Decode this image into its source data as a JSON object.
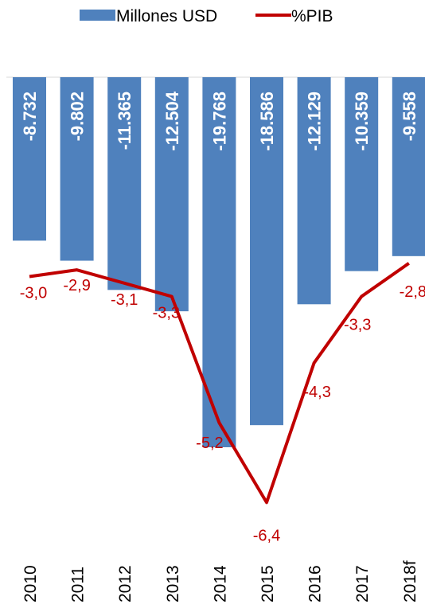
{
  "colors": {
    "bars": "#4F81BD",
    "line": "#C00000",
    "labels": "#C00000",
    "axis": "#D9D9D9"
  },
  "legend": {
    "bar_series": "Millones USD",
    "line_series": "%PIB"
  },
  "chart_data": {
    "type": "bar",
    "categories": [
      "2010",
      "2011",
      "2012",
      "2013",
      "2014",
      "2015",
      "2016",
      "2017",
      "2018f"
    ],
    "series": [
      {
        "name": "Millones USD",
        "type": "bar",
        "values": [
          -8732,
          -9802,
          -11365,
          -12504,
          -19768,
          -18586,
          -12129,
          -10359,
          -9558
        ],
        "labels": [
          "-8.732",
          "-9.802",
          "-11.365",
          "-12.504",
          "-19.768",
          "-18.586",
          "-12.129",
          "-10.359",
          "-9.558"
        ]
      },
      {
        "name": "%PIB",
        "type": "line",
        "values": [
          -3.0,
          -2.9,
          -3.1,
          -3.3,
          -5.2,
          -6.4,
          -4.3,
          -3.3,
          -2.8
        ],
        "labels": [
          "-3,0",
          "-2,9",
          "-3,1",
          "-3,3",
          "-5,2",
          "-6,4",
          "-4,3",
          "-3,3",
          "-2,8"
        ]
      }
    ],
    "legend_position": "top",
    "grid": false
  }
}
